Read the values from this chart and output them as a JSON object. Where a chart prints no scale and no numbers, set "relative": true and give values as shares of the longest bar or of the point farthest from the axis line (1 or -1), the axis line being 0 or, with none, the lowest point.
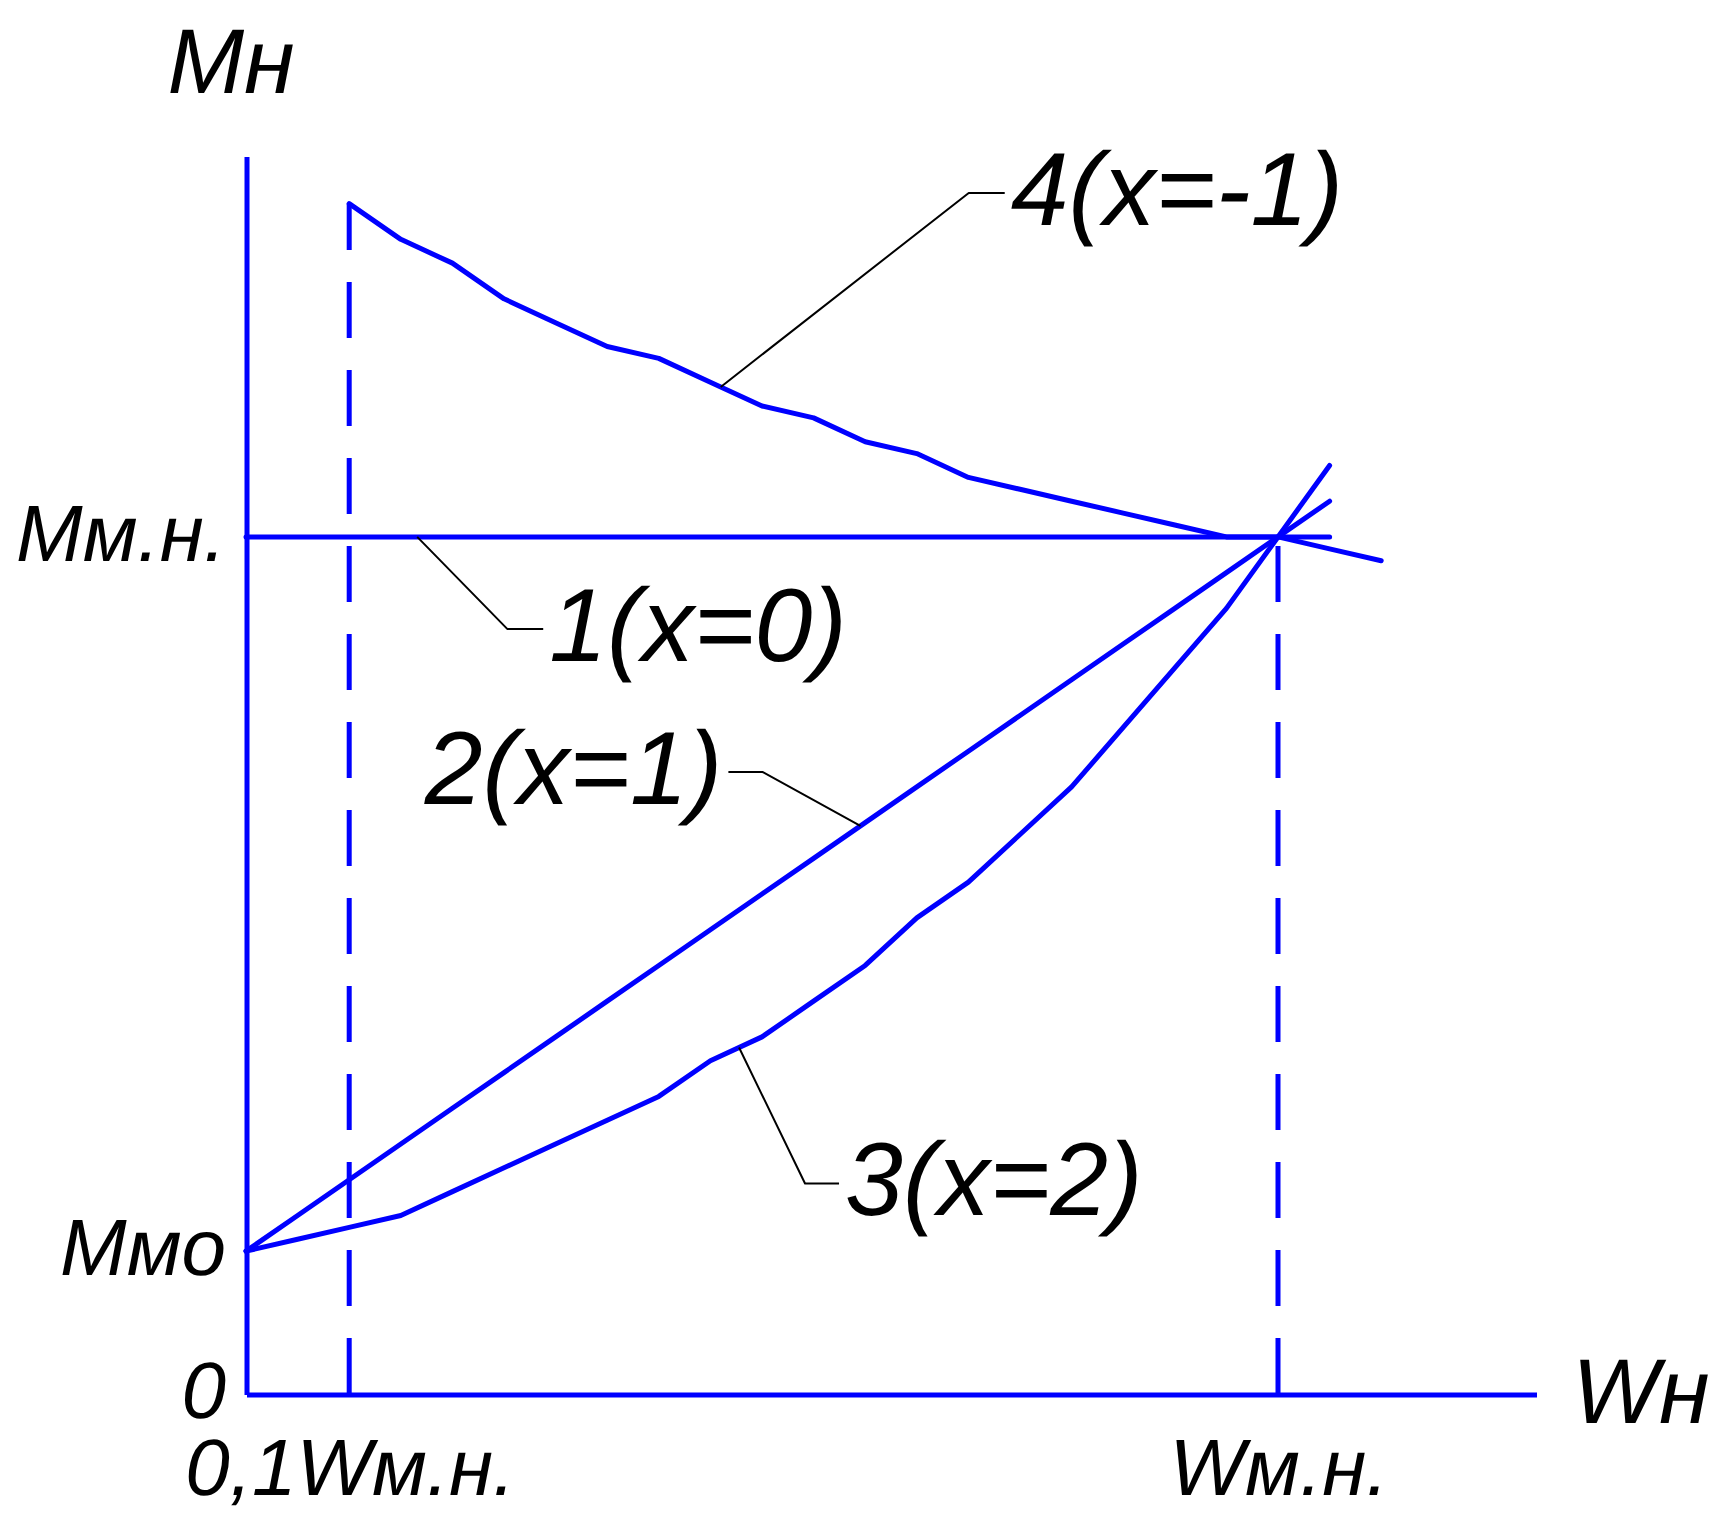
{
  "chart_data": {
    "type": "line",
    "relative": true,
    "xlabel": "Wн",
    "ylabel": "Mн",
    "categories": [
      null,
      null,
      "0,1Wм.н.",
      null,
      null,
      null,
      null,
      null,
      null,
      null,
      null,
      null,
      null,
      null,
      null,
      null,
      null,
      null,
      null,
      null,
      "Wм.н.",
      null,
      null,
      null,
      null,
      null
    ],
    "series": [
      {
        "name": "1(x=0)",
        "color": "#0000ff",
        "values": [
          0.72,
          0.72,
          0.72,
          0.72,
          0.72,
          0.72,
          0.72,
          0.72,
          0.72,
          0.72,
          0.72,
          0.72,
          0.72,
          0.72,
          0.72,
          0.72,
          0.72,
          0.72,
          0.72,
          0.72,
          0.72,
          0.72,
          null,
          null,
          null,
          null
        ]
      },
      {
        "name": "2(x=1)",
        "color": "#0000ff",
        "values": [
          0.12,
          0.15,
          0.18,
          0.21,
          0.24,
          0.27,
          0.3,
          0.33,
          0.36,
          0.39,
          0.42,
          0.45,
          0.48,
          0.51,
          0.54,
          0.57,
          0.6,
          0.63,
          0.66,
          0.69,
          0.72,
          0.75,
          null,
          null,
          null,
          null
        ]
      },
      {
        "name": "3(x=2)",
        "color": "#0000ff",
        "values": [
          0.12,
          0.13,
          0.14,
          0.15,
          0.17,
          0.19,
          0.21,
          0.23,
          0.25,
          0.28,
          0.3,
          0.33,
          0.36,
          0.4,
          0.43,
          0.47,
          0.51,
          0.56,
          0.61,
          0.66,
          0.72,
          0.78,
          null,
          null,
          null,
          null
        ]
      },
      {
        "name": "4(x=-1)",
        "color": "#0000ff",
        "values": [
          null,
          null,
          1.0,
          0.97,
          0.95,
          0.92,
          0.9,
          0.88,
          0.87,
          0.85,
          0.83,
          0.82,
          0.8,
          0.79,
          0.77,
          0.76,
          0.75,
          0.74,
          0.73,
          0.72,
          0.72,
          0.71,
          0.7,
          null,
          null,
          null
        ]
      }
    ],
    "ref_lines": [
      {
        "axis": "x",
        "value": "0,1Wм.н.",
        "color": "#0000ff",
        "line_style": "dashed"
      },
      {
        "axis": "x",
        "value": "Wм.н.",
        "color": "#0000ff",
        "line_style": "dashed"
      }
    ],
    "annotations": [
      "Mм.н.",
      "Mмо",
      "0"
    ]
  }
}
